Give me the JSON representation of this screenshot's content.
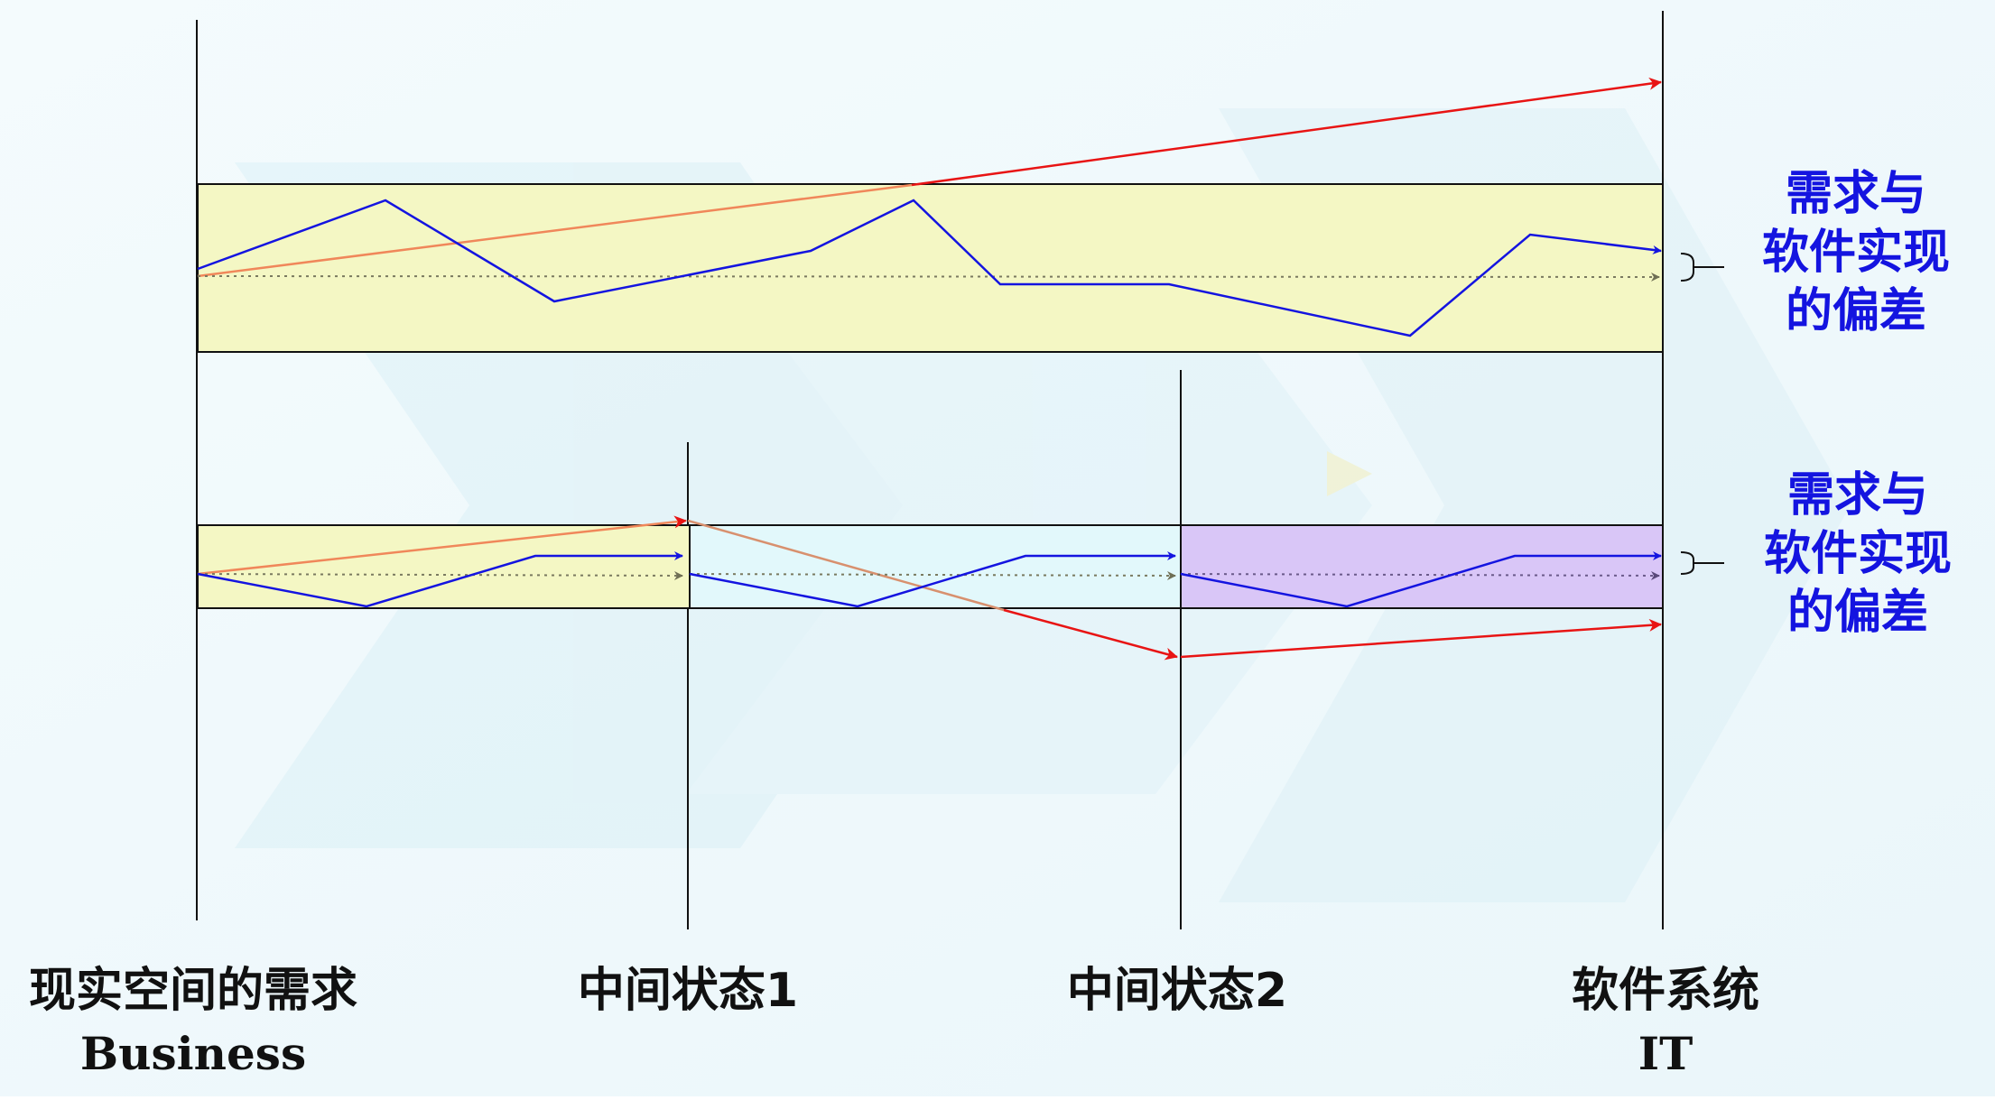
{
  "stages": [
    {
      "label": "现实空间的需求",
      "sublabel": "Business"
    },
    {
      "label": "中间状态1",
      "sublabel": ""
    },
    {
      "label": "中间状态2",
      "sublabel": ""
    },
    {
      "label": "软件系统",
      "sublabel": "IT"
    }
  ],
  "callout_top": [
    "需求与",
    "软件实现",
    "的偏差"
  ],
  "callout_bottom": [
    "需求与",
    "软件实现",
    "的偏差"
  ],
  "colors": {
    "requirement_path": "#1414e0",
    "direct_path": "#e81414",
    "direct_path_faded": "#f0875a",
    "ideal_path": "#7a7a60",
    "box_yellow": "#f4f7c4",
    "box_cyan": "#e2f8fb",
    "box_purple": "#d9c6f7",
    "callout_text": "#1414e0",
    "label_text": "#111111"
  }
}
